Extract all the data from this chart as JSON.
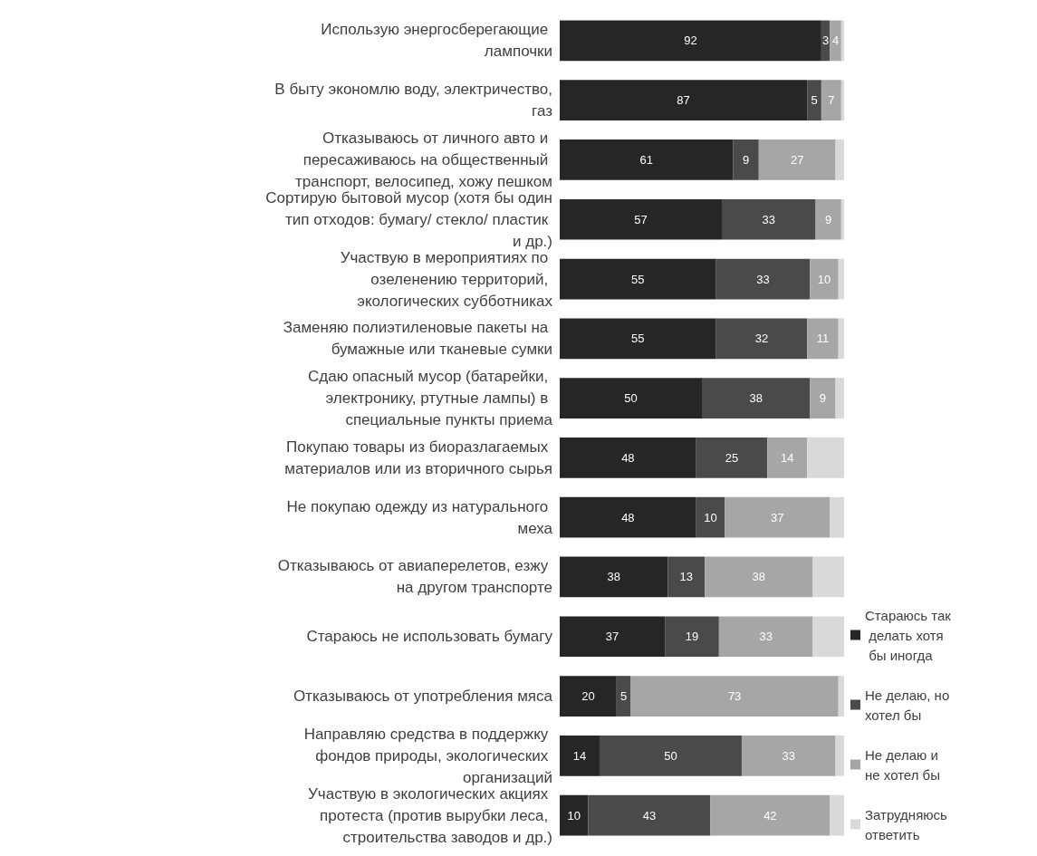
{
  "chart_data": {
    "type": "bar",
    "orientation": "horizontal",
    "stacked": true,
    "legend": "bottom right",
    "xlim": [
      0,
      100
    ],
    "categories": [
      "Использую энергосберегающие лампочки",
      "В быту экономлю воду, электричество, газ",
      "Отказываюсь от личного авто и пересаживаюсь на общественный транспорт, велосипед, хожу пешком",
      "Сортирую бытовой мусор (хотя бы один тип отходов: бумагу/ стекло/ пластик и др.)",
      "Участвую в мероприятиях по озеленению территорий, экологических субботниках",
      "Заменяю полиэтиленовые пакеты на бумажные или тканевые сумки",
      "Сдаю опасный мусор (батарейки, электронику, ртутные лампы) в специальные пункты приема",
      "Покупаю товары из биоразлагаемых материалов или из вторичного сырья",
      "Не покупаю одежду из натурального меха",
      "Отказываюсь от авиаперелетов, езжу на другом транспорте",
      "Стараюсь не использовать бумагу",
      "Отказываюсь от употребления мяса",
      "Направляю средства в поддержку фондов природы, экологических организаций",
      "Участвую в экологических акциях протеста (против вырубки леса, строительства заводов и др.)"
    ],
    "series": [
      {
        "name": "Стараюсь так делать хотя бы иногда",
        "color": "#262626",
        "values": [
          92,
          87,
          61,
          57,
          55,
          55,
          50,
          48,
          48,
          38,
          37,
          20,
          14,
          10
        ],
        "value_labels": [
          "92",
          "87",
          "61",
          "57",
          "55",
          "55",
          "50",
          "48",
          "48",
          "38",
          "37",
          "20",
          "14",
          "10"
        ]
      },
      {
        "name": "Не делаю, но хотел бы",
        "color": "#4a4a4a",
        "values": [
          3,
          5,
          9,
          33,
          33,
          32,
          38,
          25,
          10,
          13,
          19,
          5,
          50,
          43
        ],
        "value_labels": [
          "3",
          "5",
          "9",
          "33",
          "33",
          "32",
          "38",
          "25",
          "10",
          "13",
          "19",
          "5",
          "50",
          "43"
        ]
      },
      {
        "name": "Не делаю и не хотел бы",
        "color": "#a6a6a6",
        "values": [
          4,
          7,
          27,
          9,
          10,
          11,
          9,
          14,
          37,
          38,
          33,
          73,
          33,
          42
        ],
        "value_labels": [
          "4",
          "7",
          "27",
          "9",
          "10",
          "11",
          "9",
          "14",
          "37",
          "38",
          "33",
          "73",
          "33",
          "42"
        ]
      },
      {
        "name": "Затрудняюсь ответить",
        "color": "#d9d9d9",
        "values": [
          1,
          1,
          3,
          1,
          2,
          2,
          3,
          13,
          5,
          11,
          11,
          2,
          3,
          5
        ]
      }
    ]
  }
}
